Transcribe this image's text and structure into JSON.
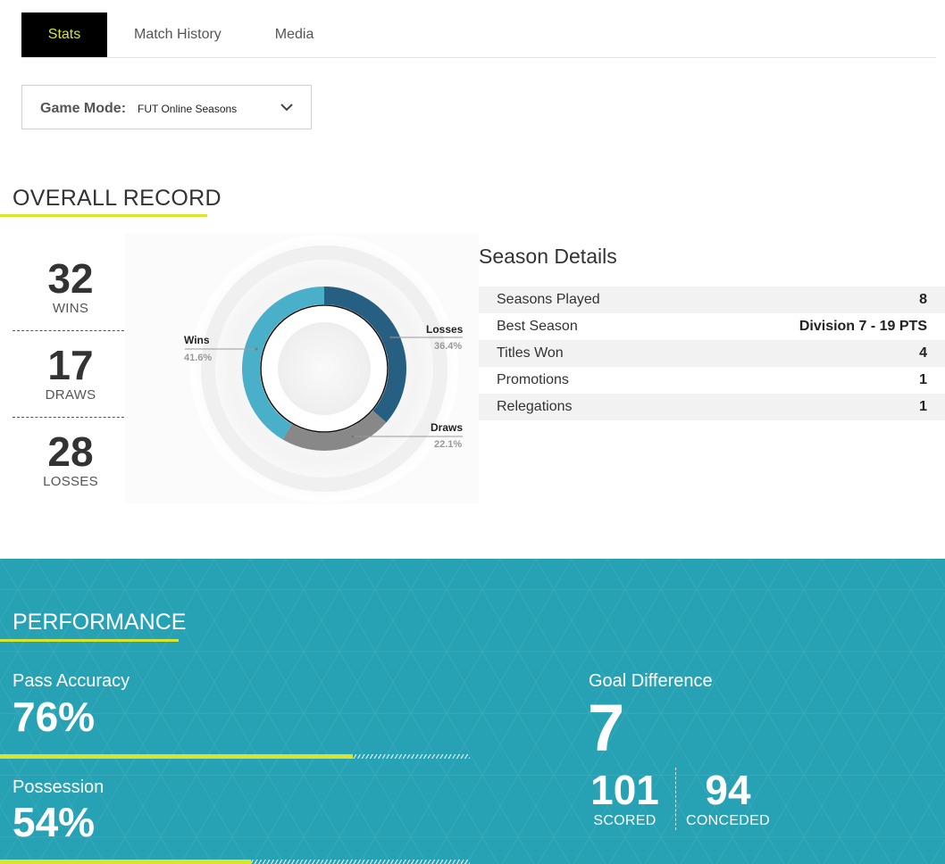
{
  "tabs": [
    {
      "label": "Stats",
      "active": true
    },
    {
      "label": "Match History",
      "active": false
    },
    {
      "label": "Media",
      "active": false
    }
  ],
  "game_mode": {
    "label": "Game Mode:",
    "value": "FUT Online Seasons",
    "icon": "chevron-down-icon"
  },
  "overall_record": {
    "title": "OVERALL RECORD",
    "wins": {
      "value": "32",
      "label": "WINS"
    },
    "draws": {
      "value": "17",
      "label": "DRAWS"
    },
    "losses": {
      "value": "28",
      "label": "LOSSES"
    },
    "donut": {
      "wins": {
        "label": "Wins",
        "pct": "41.6%",
        "fraction": 0.416,
        "color": "#4ab0c9"
      },
      "losses": {
        "label": "Losses",
        "pct": "36.4%",
        "fraction": 0.364,
        "color": "#275f82"
      },
      "draws": {
        "label": "Draws",
        "pct": "22.1%",
        "fraction": 0.221,
        "color": "#888888"
      }
    }
  },
  "season_details": {
    "title": "Season Details",
    "rows": [
      {
        "label": "Seasons Played",
        "value": "8"
      },
      {
        "label": "Best Season",
        "value": "Division 7 - 19 PTS"
      },
      {
        "label": "Titles Won",
        "value": "4"
      },
      {
        "label": "Promotions",
        "value": "1"
      },
      {
        "label": "Relegations",
        "value": "1"
      }
    ]
  },
  "performance": {
    "title": "PERFORMANCE",
    "pass_accuracy": {
      "label": "Pass Accuracy",
      "value": "76%",
      "fraction": 0.76
    },
    "possession": {
      "label": "Possession",
      "value": "54%",
      "fraction": 0.54
    },
    "goal_difference": {
      "label": "Goal Difference",
      "value": "7",
      "scored": {
        "value": "101",
        "label": "SCORED"
      },
      "conceded": {
        "value": "94",
        "label": "CONCEDED"
      }
    }
  },
  "colors": {
    "accent": "#d7e62c",
    "panel": "#26a2b4",
    "tab_active_bg": "#000000"
  }
}
